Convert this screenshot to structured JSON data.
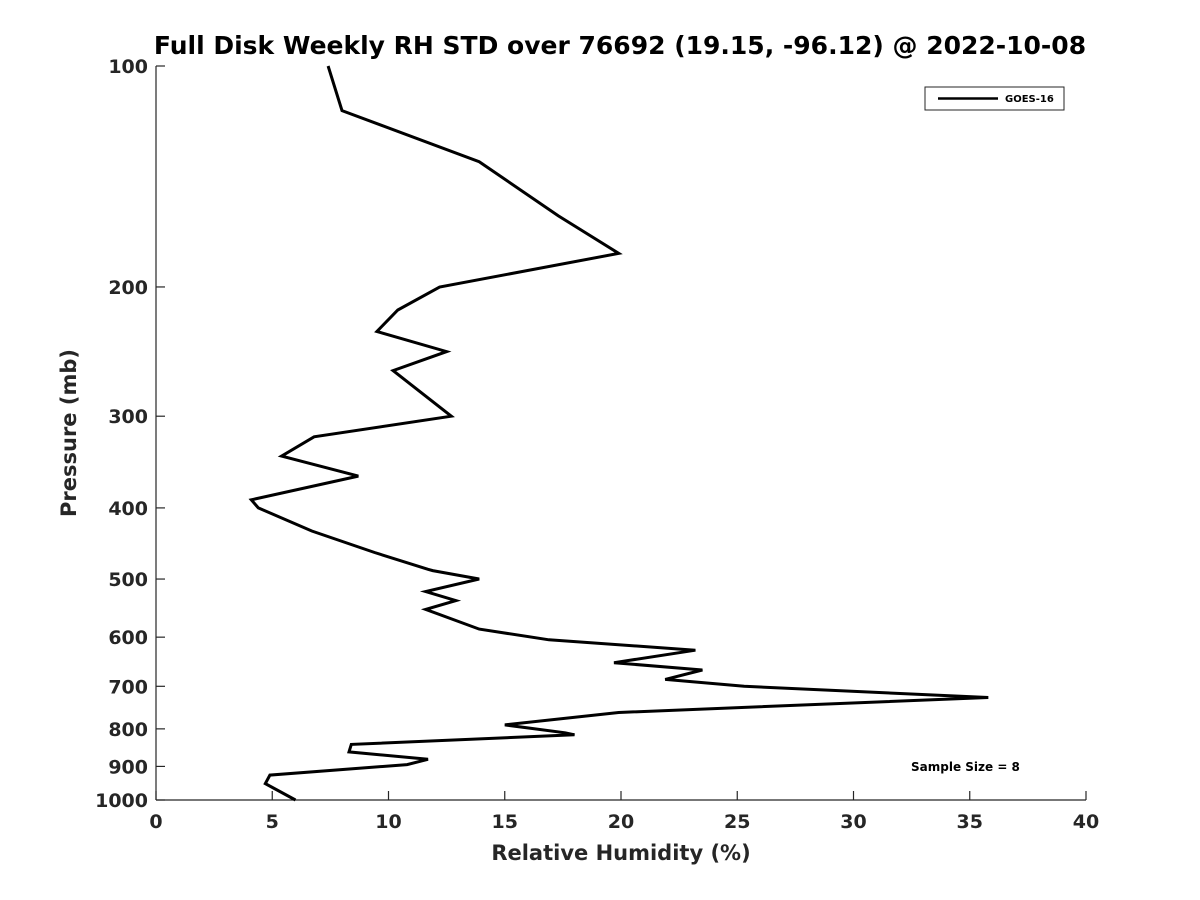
{
  "chart_data": {
    "type": "line",
    "title": "Full Disk Weekly RH STD over 76692 (19.15, -96.12) @ 2022-10-08",
    "xlabel": "Relative Humidity (%)",
    "ylabel": "Pressure (mb)",
    "xlim": [
      0,
      40
    ],
    "ylim": [
      100,
      1000
    ],
    "y_scale": "log",
    "y_reversed": true,
    "x_ticks": [
      "0",
      "5",
      "10",
      "15",
      "20",
      "25",
      "30",
      "35",
      "40"
    ],
    "y_ticks": [
      "100",
      "200",
      "300",
      "400",
      "500",
      "600",
      "700",
      "800",
      "900",
      "1000"
    ],
    "grid": false,
    "legend_position": "top-right",
    "series": [
      {
        "name": "GOES-16",
        "color": "#000000",
        "points": [
          [
            7.4,
            100
          ],
          [
            8.0,
            115
          ],
          [
            13.9,
            135
          ],
          [
            17.3,
            160
          ],
          [
            19.9,
            180
          ],
          [
            12.2,
            200
          ],
          [
            10.4,
            215
          ],
          [
            9.5,
            230
          ],
          [
            12.5,
            245
          ],
          [
            10.2,
            260
          ],
          [
            12.7,
            300
          ],
          [
            6.8,
            320
          ],
          [
            5.4,
            340
          ],
          [
            8.7,
            362
          ],
          [
            4.1,
            390
          ],
          [
            4.4,
            400
          ],
          [
            6.7,
            430
          ],
          [
            9.4,
            460
          ],
          [
            11.7,
            485
          ],
          [
            11.9,
            487
          ],
          [
            13.9,
            500
          ],
          [
            11.6,
            520
          ],
          [
            12.9,
            535
          ],
          [
            11.6,
            550
          ],
          [
            13.9,
            585
          ],
          [
            16.9,
            605
          ],
          [
            23.2,
            625
          ],
          [
            19.7,
            650
          ],
          [
            23.5,
            665
          ],
          [
            21.9,
            685
          ],
          [
            25.3,
            700
          ],
          [
            35.8,
            725
          ],
          [
            19.9,
            760
          ],
          [
            15.0,
            790
          ],
          [
            17.6,
            810
          ],
          [
            18.0,
            815
          ],
          [
            8.4,
            840
          ],
          [
            8.3,
            860
          ],
          [
            11.7,
            880
          ],
          [
            10.8,
            895
          ],
          [
            4.9,
            925
          ],
          [
            4.7,
            950
          ],
          [
            6.0,
            1000
          ]
        ]
      }
    ],
    "annotations": [
      {
        "text": "Sample Size = 8",
        "position": "bottom-right"
      }
    ]
  }
}
